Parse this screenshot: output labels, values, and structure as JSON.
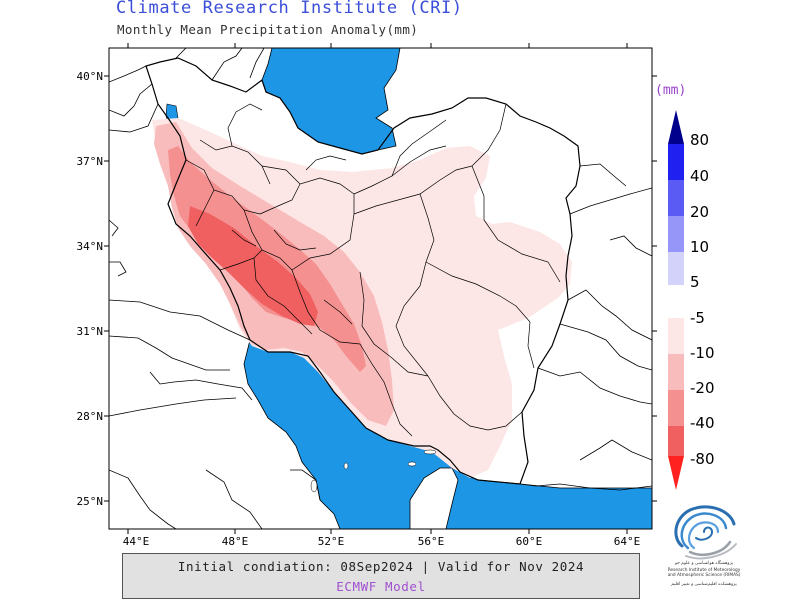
{
  "header": {
    "title": "Climate Research Institute (CRI)",
    "subtitle": "Monthly Mean Precipitation Anomaly(mm)"
  },
  "map": {
    "lat_ticks": [
      "40°N",
      "37°N",
      "34°N",
      "31°N",
      "28°N",
      "25°N"
    ],
    "lon_ticks": [
      "44°E",
      "48°E",
      "52°E",
      "56°E",
      "60°E",
      "64°E"
    ],
    "extent": {
      "lon_min": 43.3,
      "lon_max": 64.7,
      "lat_min": 24.0,
      "lat_max": 40.3
    },
    "colors": {
      "sea": "#1e96e6",
      "anomaly_minus_5": "#fde6e6",
      "anomaly_minus_10": "#f9bcbc",
      "anomaly_minus_20": "#f59090",
      "anomaly_minus_40": "#f06060",
      "land": "#ffffff",
      "border": "#000000"
    }
  },
  "legend": {
    "unit": "(mm)",
    "unit_color": "#9a44c8",
    "positive_labels": [
      "80",
      "40",
      "20",
      "10",
      "5"
    ],
    "positive_colors": [
      "#00008c",
      "#2020f0",
      "#5a5af5",
      "#9696f8",
      "#d2d2fa"
    ],
    "negative_labels": [
      "-5",
      "-10",
      "-20",
      "-40",
      "-80"
    ],
    "negative_colors": [
      "#fde6e6",
      "#f9bcbc",
      "#f59090",
      "#f06060",
      "#ff2020"
    ]
  },
  "footer": {
    "line1": "Initial condiation: 08Sep2024 | Valid for Nov 2024",
    "line2": "ECMWF Model"
  },
  "logo": {
    "text_fa_1": "پژوهشگاه هواشناسی و علوم جو",
    "text_en": "Research Institute of Meteorology and Atmospheric Science (RIMAS)",
    "text_fa_2": "پژوهشکده اقلیم‌شناسی و تغییر اقلیم"
  },
  "colors": {
    "title": "#3a4ed8",
    "subtitle": "#333333",
    "footer_line2": "#a050d0"
  }
}
